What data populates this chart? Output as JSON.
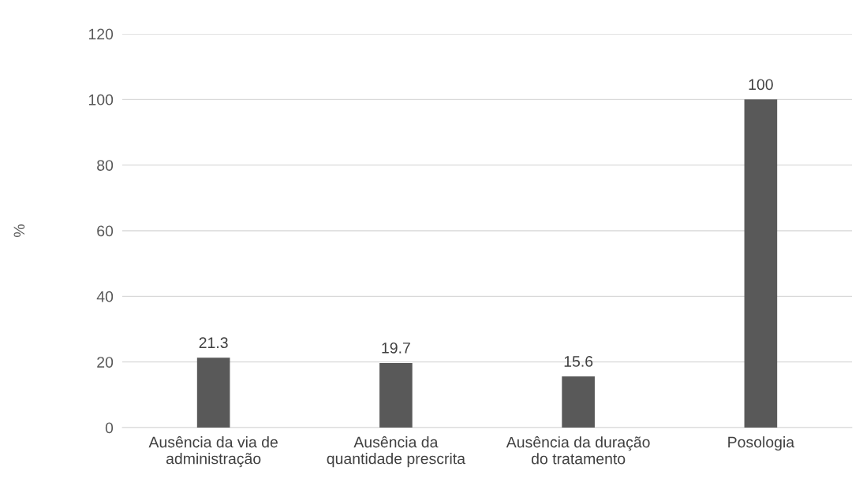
{
  "chart_data": {
    "type": "bar",
    "ylabel": "%",
    "categories": [
      "Ausência da via de\nadministração",
      "Ausência da\nquantidade prescrita",
      "Ausência da duração\ndo tratamento",
      "Posologia"
    ],
    "values": [
      21.3,
      19.7,
      15.6,
      100
    ],
    "color": "#595959",
    "ylim": [
      0,
      120
    ],
    "yticks": [
      0,
      20,
      40,
      60,
      80,
      100,
      120
    ],
    "grid": "y",
    "data_labels": true
  }
}
